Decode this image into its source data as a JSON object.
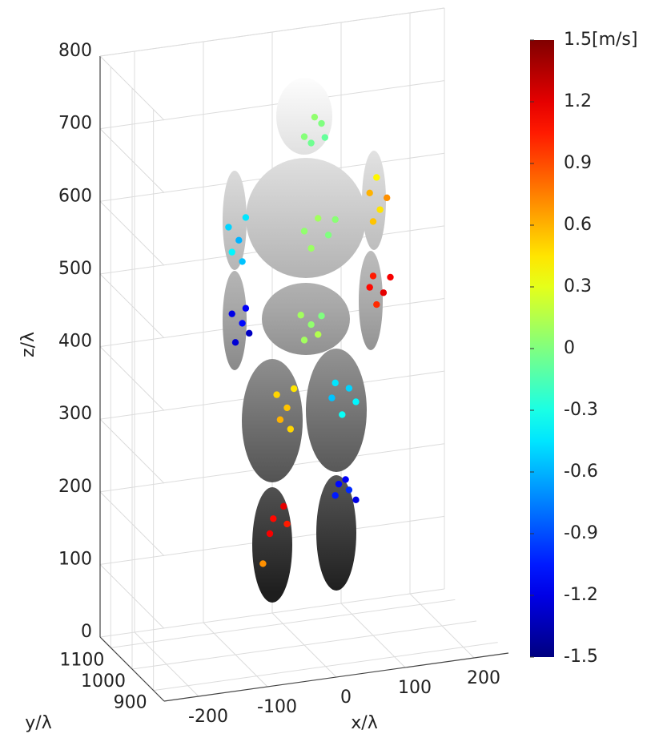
{
  "chart_data": {
    "type": "scatter3d",
    "xlabel": "x/λ",
    "ylabel": "y/λ",
    "zlabel": "z/λ",
    "xlim": [
      -250,
      250
    ],
    "ylim": [
      850,
      1150
    ],
    "zlim": [
      0,
      800
    ],
    "xticks": [
      -200,
      -100,
      0,
      100,
      200
    ],
    "yticks": [
      900,
      1000,
      1100
    ],
    "zticks": [
      0,
      100,
      200,
      300,
      400,
      500,
      600,
      700,
      800
    ],
    "grid": true,
    "colormap": "jet",
    "clim": [
      -1.5,
      1.5
    ],
    "cticks": [
      -1.5,
      -1.2,
      -0.9,
      -0.6,
      -0.3,
      0,
      0.3,
      0.6,
      0.9,
      1.2,
      {
        "value": 1.5,
        "label": "1.5[m/s]"
      }
    ],
    "x": [
      10,
      25,
      0,
      30,
      15,
      0,
      20,
      35,
      10,
      45,
      -110,
      -95,
      -85,
      -105,
      -90,
      95,
      110,
      100,
      120,
      105,
      -105,
      -90,
      -80,
      -100,
      -85,
      95,
      115,
      105,
      125,
      100,
      -5,
      10,
      20,
      0,
      25,
      -40,
      -25,
      -15,
      -35,
      -20,
      45,
      65,
      75,
      55,
      40,
      -45,
      -30,
      -25,
      -50,
      -60,
      50,
      65,
      75,
      60,
      45
    ],
    "y": [
      1000,
      1000,
      1000,
      1000,
      1000,
      1000,
      1000,
      1000,
      1000,
      1000,
      1000,
      1000,
      1000,
      1000,
      1000,
      1000,
      1000,
      1000,
      1000,
      1000,
      1000,
      1000,
      1000,
      1000,
      1000,
      1000,
      1000,
      1000,
      1000,
      1000,
      1000,
      1000,
      1000,
      1000,
      1000,
      1000,
      1000,
      1000,
      1000,
      1000,
      1000,
      1000,
      1000,
      1000,
      1000,
      1000,
      1000,
      1000,
      1000,
      1000,
      1000,
      1000,
      1000,
      1000,
      1000
    ],
    "z": [
      690,
      715,
      700,
      695,
      725,
      570,
      585,
      560,
      545,
      580,
      590,
      570,
      600,
      555,
      540,
      610,
      585,
      570,
      600,
      630,
      470,
      455,
      440,
      430,
      475,
      480,
      470,
      455,
      490,
      495,
      455,
      440,
      425,
      420,
      450,
      350,
      330,
      355,
      315,
      300,
      355,
      345,
      325,
      310,
      335,
      180,
      195,
      170,
      160,
      120,
      215,
      205,
      190,
      220,
      200
    ],
    "c": [
      -0.05,
      0,
      0.02,
      -0.08,
      0.05,
      0.05,
      0.1,
      0,
      0.08,
      0.03,
      -0.5,
      -0.6,
      -0.45,
      -0.4,
      -0.55,
      0.6,
      0.45,
      0.55,
      0.7,
      0.4,
      -1.2,
      -1.1,
      -1.3,
      -1.25,
      -1.15,
      1.1,
      1.2,
      1.0,
      1.15,
      1.05,
      0.1,
      0.05,
      0.15,
      0.1,
      0.0,
      0.5,
      0.55,
      0.45,
      0.6,
      0.5,
      -0.45,
      -0.5,
      -0.4,
      -0.35,
      -0.55,
      1.1,
      1.2,
      1.05,
      1.15,
      0.7,
      -1.1,
      -1.0,
      -1.2,
      -1.15,
      -1.05
    ]
  }
}
